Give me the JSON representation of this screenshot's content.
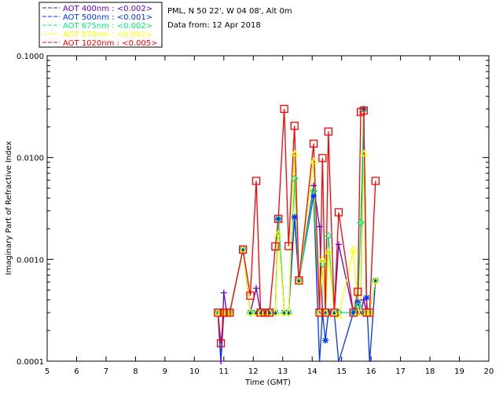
{
  "header": {
    "site": "PML, N 50 22', W 04 08', Alt 0m",
    "date": "Data from: 12 Apr 2018"
  },
  "chart_data": {
    "type": "line",
    "title": "",
    "xlabel": "Time (GMT)",
    "ylabel": "Imaginary Part of Refractive Index",
    "xlim": [
      5,
      20
    ],
    "ylim": [
      0.0001,
      0.1
    ],
    "yscale": "log",
    "xticks": [
      "5",
      "6",
      "7",
      "8",
      "9",
      "10",
      "11",
      "12",
      "13",
      "14",
      "15",
      "16",
      "17",
      "18",
      "19",
      "20"
    ],
    "yticks": [
      "0.0001",
      "0.0010",
      "0.0100",
      "0.1000"
    ],
    "legend_position": "top-left-outside",
    "x": [
      10.8,
      10.9,
      11.0,
      11.1,
      11.2,
      11.65,
      11.9,
      12.1,
      12.25,
      12.4,
      12.55,
      12.75,
      12.85,
      13.05,
      13.2,
      13.4,
      13.55,
      14.05,
      14.25,
      14.35,
      14.45,
      14.55,
      14.75,
      14.9,
      15.4,
      15.55,
      15.65,
      15.75,
      15.85,
      15.95,
      16.15
    ],
    "series": [
      {
        "name": "AOT  400nm : <0.002>",
        "color": "#6600cc",
        "marker": "plus",
        "values": [
          0.0003,
          0.0001,
          0.00047,
          0.0003,
          0.0003,
          0.00125,
          0.0003,
          0.00052,
          0.0003,
          0.0003,
          0.0003,
          0.0003,
          0.0025,
          0.0003,
          0.0003,
          0.0026,
          0.00062,
          0.0053,
          0.0021,
          0.0003,
          0.0003,
          0.0003,
          0.0003,
          0.0014,
          0.0003,
          0.0003,
          0.0003,
          0.0004,
          0.0003,
          0.0003,
          0.00062
        ]
      },
      {
        "name": "AOT  500nm : <0.001>",
        "color": "#0033ff",
        "marker": "star",
        "values": [
          0.0003,
          8e-05,
          0.0003,
          0.0003,
          0.0003,
          0.00125,
          0.0003,
          0.0003,
          0.0003,
          0.0003,
          0.0003,
          0.0003,
          0.0025,
          0.0003,
          0.0003,
          0.0026,
          0.00062,
          0.0042,
          8e-05,
          0.0003,
          0.00016,
          0.0003,
          0.0003,
          8e-05,
          0.0003,
          0.00038,
          0.0003,
          0.03,
          0.00042,
          8e-05,
          0.00062
        ]
      },
      {
        "name": "AOT  675nm : <0.002>",
        "color": "#00ee77",
        "marker": "diamond",
        "values": [
          0.0003,
          0.0003,
          0.0003,
          0.0003,
          0.0003,
          0.00125,
          0.0003,
          0.0003,
          0.0003,
          0.0003,
          0.0003,
          0.0003,
          0.0025,
          0.0003,
          0.0003,
          0.0062,
          0.00062,
          0.0047,
          0.0003,
          0.0009,
          0.0003,
          0.0017,
          0.0003,
          0.0003,
          0.0003,
          0.00035,
          0.0023,
          0.03,
          0.0003,
          0.0003,
          0.00062
        ]
      },
      {
        "name": "AOT  870nm : <0.002>",
        "color": "#ffff00",
        "marker": "triangle",
        "values": [
          0.0003,
          0.0003,
          0.0003,
          0.0003,
          0.0003,
          0.00125,
          0.0003,
          0.0003,
          0.0003,
          0.0003,
          0.0003,
          0.0003,
          0.0018,
          0.0003,
          0.0003,
          0.011,
          0.00062,
          0.0092,
          0.0003,
          0.001,
          0.0003,
          0.0012,
          0.0003,
          0.00028,
          0.00125,
          0.0003,
          0.0003,
          0.011,
          0.0003,
          0.0003,
          0.00062
        ]
      },
      {
        "name": "AOT 1020nm : <0.005>",
        "color": "#ff0000",
        "marker": "square",
        "values": [
          0.0003,
          0.00015,
          0.0003,
          0.0003,
          0.0003,
          0.00125,
          0.00044,
          0.0059,
          0.0003,
          0.0003,
          0.0003,
          0.00134,
          0.0025,
          0.03,
          0.00135,
          0.0205,
          0.00062,
          0.0137,
          0.0003,
          0.0099,
          0.0003,
          0.018,
          0.0003,
          0.0029,
          0.0003,
          0.00048,
          0.028,
          0.029,
          0.0003,
          0.0003,
          0.0059
        ]
      }
    ]
  }
}
